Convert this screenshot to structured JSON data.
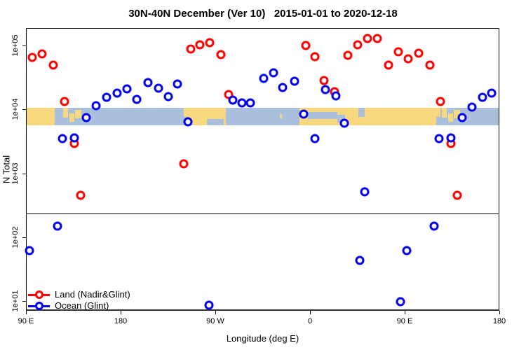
{
  "title": "30N-40N December (Ver 10)   2015-01-01 to 2020-12-18",
  "axes": {
    "x_label": "Longitude (deg E)",
    "y_label": "N Total",
    "x_ticks": [
      {
        "value": 90,
        "label": "90 E"
      },
      {
        "value": 180,
        "label": "180"
      },
      {
        "value": 270,
        "label": "90 W"
      },
      {
        "value": 360,
        "label": "0"
      },
      {
        "value": 450,
        "label": "90 E"
      },
      {
        "value": 540,
        "label": "180"
      }
    ],
    "y_ticks": [
      {
        "value": 10,
        "label": "1e+01"
      },
      {
        "value": 100,
        "label": "1e+02"
      },
      {
        "value": 1000,
        "label": "1e+03"
      },
      {
        "value": 10000,
        "label": "1e+04"
      },
      {
        "value": 100000,
        "label": "1e+05"
      }
    ]
  },
  "legend": {
    "items": [
      {
        "label": "Land (Nadir&Glint)",
        "color": "#ff0000"
      },
      {
        "label": "Ocean (Glint)",
        "color": "#0000ee"
      }
    ]
  },
  "colors": {
    "land_series": "#ff0000",
    "ocean_series": "#0000ee",
    "map_land": "#f7d87c",
    "map_ocean": "#a9bfdc",
    "axis": "#000000"
  },
  "chart_data": {
    "type": "scatter",
    "title": "30N-40N December (Ver 10)   2015-01-01 to 2020-12-18",
    "xlabel": "Longitude (deg E)",
    "ylabel": "N Total",
    "x_axis_note": "longitude axis spans 450 deg starting at 90E; values >360 wrap (e.g. 450=90E repeated)",
    "xlim": [
      90,
      540
    ],
    "y_scale": "log10",
    "ylim": [
      7,
      190000
    ],
    "grid": false,
    "legend_position": "bottom-left",
    "threshold_line_N": 235,
    "series": [
      {
        "name": "Land (Nadir&Glint)",
        "color": "#ff0000",
        "points": [
          [
            96,
            65000
          ],
          [
            105.3,
            74000
          ],
          [
            116,
            49000
          ],
          [
            126.7,
            13300
          ],
          [
            136,
            2930
          ],
          [
            142,
            455
          ],
          [
            240,
            1410
          ],
          [
            246.7,
            88000
          ],
          [
            255.3,
            103000
          ],
          [
            264.7,
            111000
          ],
          [
            275.3,
            72000
          ],
          [
            282.7,
            17100
          ],
          [
            356,
            100000
          ],
          [
            364.7,
            66800
          ],
          [
            373.3,
            28300
          ],
          [
            383.3,
            18900
          ],
          [
            396,
            70300
          ],
          [
            405.3,
            103000
          ],
          [
            414.7,
            129000
          ],
          [
            424,
            129000
          ],
          [
            434.7,
            49000
          ],
          [
            444,
            79600
          ],
          [
            453.3,
            62000
          ],
          [
            463.3,
            75800
          ],
          [
            474,
            49000
          ],
          [
            484,
            13300
          ],
          [
            494,
            2930
          ],
          [
            500,
            455
          ]
        ]
      },
      {
        "name": "Ocean (Glint)",
        "color": "#0000ee",
        "points": [
          [
            93.3,
            61
          ],
          [
            120,
            149
          ],
          [
            124.7,
            3500
          ],
          [
            136,
            3580
          ],
          [
            147.3,
            7450
          ],
          [
            156.7,
            11400
          ],
          [
            166.7,
            15500
          ],
          [
            176.7,
            18000
          ],
          [
            186,
            21000
          ],
          [
            195.3,
            14350
          ],
          [
            206,
            26300
          ],
          [
            216,
            21500
          ],
          [
            225.3,
            15900
          ],
          [
            234,
            25000
          ],
          [
            244,
            6400
          ],
          [
            264,
            8.6
          ],
          [
            286.7,
            14000
          ],
          [
            295.3,
            12650
          ],
          [
            303.3,
            12650
          ],
          [
            316,
            30500
          ],
          [
            325.3,
            37400
          ],
          [
            334,
            22000
          ],
          [
            345.3,
            27600
          ],
          [
            354,
            8450
          ],
          [
            364.7,
            3500
          ],
          [
            374.7,
            20400
          ],
          [
            384.7,
            16250
          ],
          [
            392.7,
            6080
          ],
          [
            407.3,
            43.5
          ],
          [
            412,
            515
          ],
          [
            446,
            9.8
          ],
          [
            452,
            61
          ],
          [
            478,
            149
          ],
          [
            482.7,
            3500
          ],
          [
            494,
            3580
          ],
          [
            504.7,
            7450
          ],
          [
            514,
            10900
          ],
          [
            524,
            15500
          ],
          [
            532.7,
            18000
          ]
        ]
      }
    ],
    "map_band": {
      "description_N_range": [
        8200,
        10500
      ],
      "land_segments": [
        {
          "lon": [
            90,
            117
          ],
          "v": [
            0,
            1
          ]
        },
        {
          "lon": [
            125.5,
            130
          ],
          "v": [
            0,
            0.55
          ]
        },
        {
          "lon": [
            131,
            136
          ],
          "v": [
            0.3,
            0.78
          ]
        },
        {
          "lon": [
            136.5,
            142.5
          ],
          "v": [
            0.12,
            0.6
          ]
        },
        {
          "lon": [
            240,
            280
          ],
          "v": [
            0,
            1
          ]
        },
        {
          "lon": [
            331,
            333
          ],
          "v": [
            0.35,
            0.6
          ]
        },
        {
          "lon": [
            350,
            480
          ],
          "v": [
            0,
            1
          ]
        },
        {
          "lon": [
            480,
            484
          ],
          "v": [
            0,
            0.5
          ]
        },
        {
          "lon": [
            485.5,
            490
          ],
          "v": [
            0,
            0.55
          ]
        },
        {
          "lon": [
            491,
            496
          ],
          "v": [
            0.3,
            0.78
          ]
        },
        {
          "lon": [
            496.5,
            502.5
          ],
          "v": [
            0.12,
            0.6
          ]
        }
      ],
      "ocean_patches": [
        {
          "lon": [
            240,
            244.5
          ],
          "v": [
            0.5,
            1
          ]
        },
        {
          "lon": [
            262,
            278
          ],
          "v": [
            0.62,
            1
          ]
        },
        {
          "lon": [
            358,
            386
          ],
          "v": [
            0.22,
            0.62
          ]
        },
        {
          "lon": [
            386,
            393
          ],
          "v": [
            0.38,
            0.85
          ]
        },
        {
          "lon": [
            406,
            412
          ],
          "v": [
            0,
            0.5
          ]
        }
      ]
    }
  }
}
